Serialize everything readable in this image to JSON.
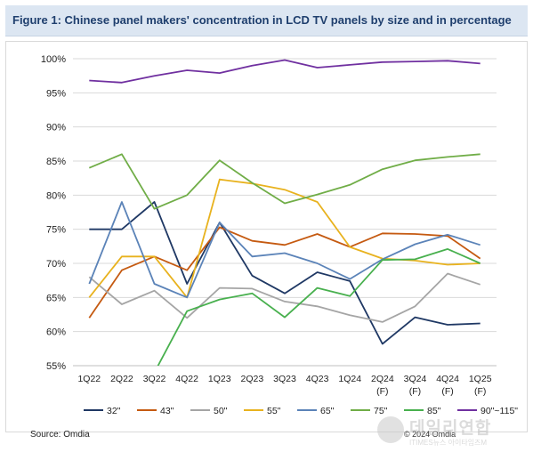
{
  "figure": {
    "title": "Figure 1: Chinese panel makers' concentration in LCD TV panels by size and in percentage",
    "source": "Source: Omdia",
    "copyright": "© 2024 Omdia"
  },
  "watermark": {
    "main": "데일리연합",
    "sub": "ITIMES뉴스 아이타임즈M"
  },
  "chart_data": {
    "type": "line",
    "title": "",
    "xlabel": "",
    "ylabel": "",
    "ylim": [
      55,
      100
    ],
    "y_ticks": [
      "55%",
      "60%",
      "65%",
      "70%",
      "75%",
      "80%",
      "85%",
      "90%",
      "95%",
      "100%"
    ],
    "grid": true,
    "legend_position": "bottom",
    "categories": [
      [
        "1Q22"
      ],
      [
        "2Q22"
      ],
      [
        "3Q22"
      ],
      [
        "4Q22"
      ],
      [
        "1Q23"
      ],
      [
        "2Q23"
      ],
      [
        "3Q23"
      ],
      [
        "4Q23"
      ],
      [
        "1Q24"
      ],
      [
        "2Q24",
        "(F)"
      ],
      [
        "3Q24",
        "(F)"
      ],
      [
        "4Q24",
        "(F)"
      ],
      [
        "1Q25",
        "(F)"
      ]
    ],
    "series": [
      {
        "name": "32\"",
        "color": "#1f3864",
        "values": [
          75,
          75,
          79,
          67,
          76,
          68.2,
          65.6,
          68.7,
          67.4,
          58.2,
          62.1,
          61.0,
          61.2
        ]
      },
      {
        "name": "43\"",
        "color": "#c55a11",
        "values": [
          62,
          69,
          71,
          69,
          75.3,
          73.3,
          72.7,
          74.3,
          72.4,
          74.4,
          74.3,
          74.0,
          70.7
        ]
      },
      {
        "name": "50\"",
        "color": "#a5a5a5",
        "values": [
          68,
          64,
          66,
          62,
          66.4,
          66.3,
          64.4,
          63.7,
          62.4,
          61.4,
          63.7,
          68.5,
          66.9
        ]
      },
      {
        "name": "55\"",
        "color": "#e8b21e",
        "values": [
          65,
          71,
          71,
          65,
          82.3,
          81.7,
          80.8,
          79.0,
          72.4,
          70.7,
          70.4,
          69.8,
          70.0
        ]
      },
      {
        "name": "65\"",
        "color": "#5b83b8",
        "values": [
          67,
          79,
          67,
          65,
          76,
          71.0,
          71.5,
          70.0,
          67.7,
          70.6,
          72.8,
          74.2,
          72.7
        ]
      },
      {
        "name": "75\"",
        "color": "#70ad47",
        "values": [
          84,
          86,
          78,
          80,
          85.1,
          81.8,
          78.8,
          80.1,
          81.5,
          83.8,
          85.1,
          85.6,
          86.0
        ]
      },
      {
        "name": "85\"",
        "color": "#48b04e",
        "values": [
          null,
          null,
          54,
          63,
          64.7,
          65.6,
          62.1,
          66.4,
          65.2,
          70.5,
          70.6,
          72.1,
          70.0
        ]
      },
      {
        "name": "90\"~115\"",
        "color": "#7030a0",
        "values": [
          96.8,
          96.5,
          97.5,
          98.3,
          97.9,
          99.0,
          99.8,
          98.7,
          99.1,
          99.5,
          99.6,
          99.7,
          99.3
        ]
      }
    ]
  }
}
